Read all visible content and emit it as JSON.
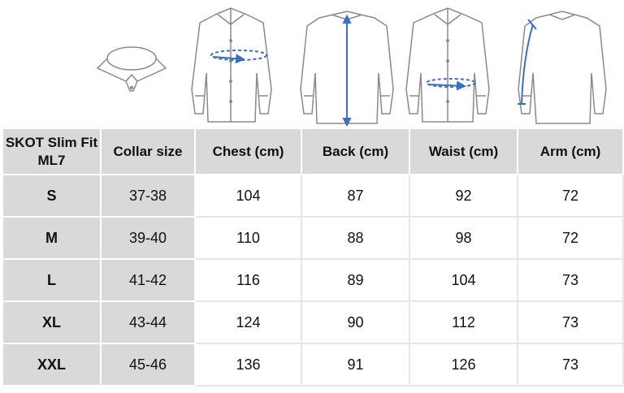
{
  "headers": [
    "SKOT Slim Fit ML7",
    "Collar size",
    "Chest (cm)",
    "Back (cm)",
    "Waist (cm)",
    "Arm (cm)"
  ],
  "rows": [
    {
      "size": "S",
      "collar": "37-38",
      "chest": "104",
      "back": "87",
      "waist": "92",
      "arm": "72"
    },
    {
      "size": "M",
      "collar": "39-40",
      "chest": "110",
      "back": "88",
      "waist": "98",
      "arm": "72"
    },
    {
      "size": "L",
      "collar": "41-42",
      "chest": "116",
      "back": "89",
      "waist": "104",
      "arm": "73"
    },
    {
      "size": "XL",
      "collar": "43-44",
      "chest": "124",
      "back": "90",
      "waist": "112",
      "arm": "73"
    },
    {
      "size": "XXL",
      "collar": "45-46",
      "chest": "136",
      "back": "91",
      "waist": "126",
      "arm": "73"
    }
  ],
  "colors": {
    "measure_line": "#3a6fc4",
    "header_bg": "#d9d9d9",
    "outline": "#8a8a8a"
  }
}
